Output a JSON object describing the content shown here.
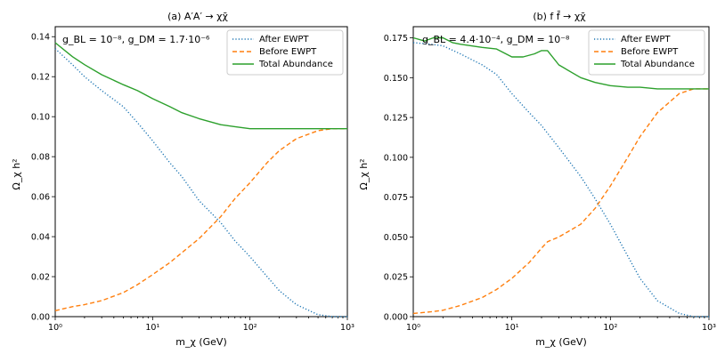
{
  "chart_data": [
    {
      "type": "line",
      "title": "(a) A′A′ → χχ̄",
      "annotation": "g_BL = 10⁻⁸, g_DM = 1.7·10⁻⁶",
      "xlabel": "m_χ (GeV)",
      "ylabel": "Ω_χ h²",
      "xscale": "log",
      "xlim": [
        1,
        1000
      ],
      "ylim": [
        0,
        0.145
      ],
      "xticks": [
        1,
        10,
        100,
        1000
      ],
      "xtick_labels": [
        "10⁰",
        "10¹",
        "10²",
        "10³"
      ],
      "yticks": [
        0,
        0.02,
        0.04,
        0.06,
        0.08,
        0.1,
        0.12,
        0.14
      ],
      "ytick_labels": [
        "0.00",
        "0.02",
        "0.04",
        "0.06",
        "0.08",
        "0.10",
        "0.12",
        "0.14"
      ],
      "legend_position": "top-right",
      "series": [
        {
          "name": "After EWPT",
          "color": "#1f77b4",
          "style": "dotted",
          "x": [
            1,
            1.5,
            2,
            3,
            5,
            7,
            10,
            15,
            20,
            30,
            50,
            70,
            100,
            150,
            200,
            300,
            500,
            700,
            1000
          ],
          "values": [
            0.134,
            0.126,
            0.12,
            0.113,
            0.105,
            0.097,
            0.088,
            0.077,
            0.07,
            0.058,
            0.047,
            0.038,
            0.03,
            0.02,
            0.013,
            0.006,
            0.001,
            0.0,
            0.0
          ]
        },
        {
          "name": "Before EWPT",
          "color": "#ff7f0e",
          "style": "dashed",
          "x": [
            1,
            1.5,
            2,
            3,
            5,
            7,
            10,
            15,
            20,
            30,
            50,
            70,
            100,
            150,
            200,
            300,
            500,
            700,
            1000
          ],
          "values": [
            0.003,
            0.005,
            0.006,
            0.008,
            0.012,
            0.016,
            0.021,
            0.027,
            0.032,
            0.039,
            0.05,
            0.059,
            0.067,
            0.077,
            0.083,
            0.089,
            0.093,
            0.094,
            0.094
          ]
        },
        {
          "name": "Total Abundance",
          "color": "#2ca02c",
          "style": "solid",
          "x": [
            1,
            1.5,
            2,
            3,
            5,
            7,
            10,
            15,
            20,
            30,
            50,
            70,
            100,
            150,
            200,
            300,
            500,
            700,
            1000
          ],
          "values": [
            0.137,
            0.13,
            0.126,
            0.121,
            0.116,
            0.113,
            0.109,
            0.105,
            0.102,
            0.099,
            0.096,
            0.095,
            0.094,
            0.094,
            0.094,
            0.094,
            0.094,
            0.094,
            0.094
          ]
        }
      ]
    },
    {
      "type": "line",
      "title": "(b) f f̄ → χχ̄",
      "annotation": "g_BL = 4.4·10⁻⁴, g_DM = 10⁻⁸",
      "xlabel": "m_χ (GeV)",
      "ylabel": "Ω_χ h²",
      "xscale": "log",
      "xlim": [
        1,
        1000
      ],
      "ylim": [
        0,
        0.182
      ],
      "xticks": [
        1,
        10,
        100,
        1000
      ],
      "xtick_labels": [
        "10⁰",
        "10¹",
        "10²",
        "10³"
      ],
      "yticks": [
        0,
        0.025,
        0.05,
        0.075,
        0.1,
        0.125,
        0.15,
        0.175
      ],
      "ytick_labels": [
        "0.000",
        "0.025",
        "0.050",
        "0.075",
        "0.100",
        "0.125",
        "0.150",
        "0.175"
      ],
      "legend_position": "top-right",
      "series": [
        {
          "name": "After EWPT",
          "color": "#1f77b4",
          "style": "dotted",
          "x": [
            1,
            1.5,
            2,
            3,
            5,
            7,
            10,
            15,
            20,
            30,
            50,
            70,
            100,
            150,
            200,
            300,
            500,
            700,
            1000
          ],
          "values": [
            0.172,
            0.171,
            0.17,
            0.165,
            0.158,
            0.152,
            0.14,
            0.128,
            0.12,
            0.106,
            0.088,
            0.074,
            0.058,
            0.038,
            0.024,
            0.01,
            0.002,
            0.0,
            0.0
          ]
        },
        {
          "name": "Before EWPT",
          "color": "#ff7f0e",
          "style": "dashed",
          "x": [
            1,
            1.5,
            2,
            3,
            5,
            7,
            10,
            15,
            20,
            23,
            30,
            50,
            70,
            100,
            150,
            200,
            300,
            500,
            700,
            1000
          ],
          "values": [
            0.002,
            0.003,
            0.004,
            0.007,
            0.012,
            0.017,
            0.024,
            0.034,
            0.043,
            0.047,
            0.05,
            0.058,
            0.068,
            0.082,
            0.1,
            0.113,
            0.128,
            0.14,
            0.143,
            0.143
          ]
        },
        {
          "name": "Total Abundance",
          "color": "#2ca02c",
          "style": "solid",
          "x": [
            1,
            1.3,
            1.6,
            2,
            2.5,
            3,
            5,
            7,
            10,
            13,
            17,
            20,
            23,
            30,
            50,
            70,
            100,
            150,
            200,
            300,
            500,
            700,
            1000
          ],
          "values": [
            0.175,
            0.173,
            0.175,
            0.175,
            0.172,
            0.171,
            0.169,
            0.168,
            0.163,
            0.163,
            0.165,
            0.167,
            0.167,
            0.158,
            0.15,
            0.147,
            0.145,
            0.144,
            0.144,
            0.143,
            0.143,
            0.143,
            0.143
          ]
        }
      ]
    }
  ]
}
